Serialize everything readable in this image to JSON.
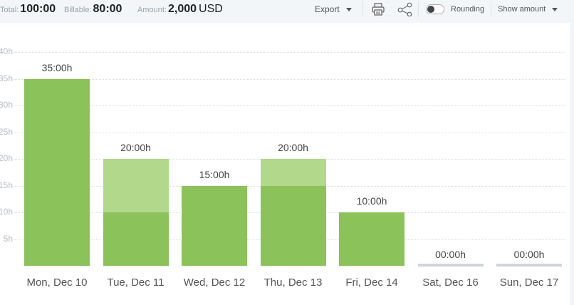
{
  "summary": {
    "total_label": "Total:",
    "total_value": "100:00",
    "billable_label": "Billable:",
    "billable_value": "80:00",
    "amount_label": "Amount:",
    "amount_value": "2,000",
    "amount_currency": "USD"
  },
  "toolbar": {
    "export_label": "Export",
    "print_icon": "printer-icon",
    "share_icon": "share-icon",
    "rounding_label": "Rounding",
    "rounding_on": false,
    "show_amount_label": "Show amount"
  },
  "chart_data": {
    "type": "bar",
    "stacked": true,
    "y_ticks": [
      "40h",
      "35h",
      "30h",
      "25h",
      "20h",
      "15h",
      "10h",
      "5h"
    ],
    "ylim": [
      0,
      40
    ],
    "categories": [
      "Mon, Dec 10",
      "Tue, Dec 11",
      "Wed, Dec 12",
      "Thu, Dec 13",
      "Fri, Dec 14",
      "Sat, Dec 16",
      "Sun, Dec 17"
    ],
    "value_labels": [
      "35:00h",
      "20:00h",
      "15:00h",
      "20:00h",
      "10:00h",
      "00:00h",
      "00:00h"
    ],
    "series": [
      {
        "values": [
          35,
          10,
          15,
          15,
          10,
          0,
          0
        ],
        "color": "#8bc25a"
      },
      {
        "values": [
          0,
          10,
          0,
          5,
          0,
          0,
          0
        ],
        "color": "#b1d88b"
      }
    ],
    "grid": true
  }
}
